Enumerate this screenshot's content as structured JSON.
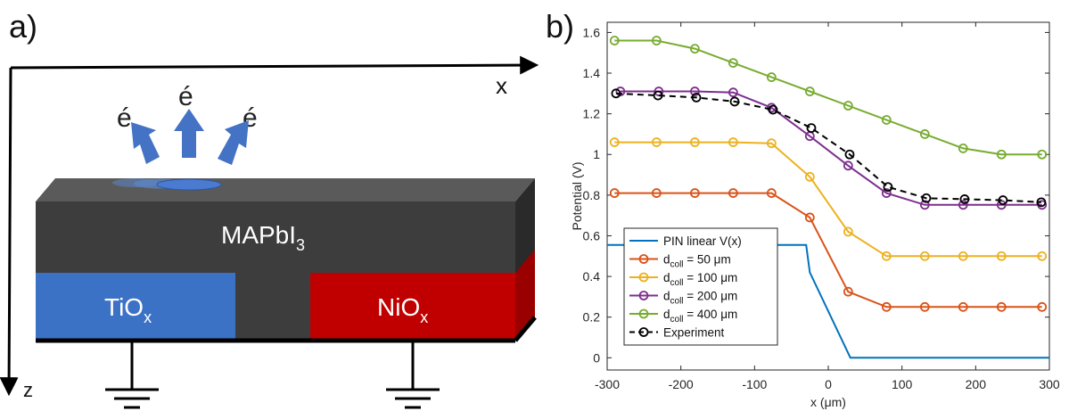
{
  "panel_a": {
    "label": "a)",
    "x_axis_label": "x",
    "z_axis_label": "z",
    "electron_symbols": [
      "é",
      "é",
      "é"
    ],
    "perovskite_label": "MAPbI",
    "perovskite_sub": "3",
    "left_contact_label": "TiO",
    "left_contact_sub": "x",
    "right_contact_label": "NiO",
    "right_contact_sub": "x",
    "colors": {
      "perovskite": "#3d3d3d",
      "tiox": "#3c72c6",
      "niox": "#c00000",
      "arrow": "#4472c4"
    }
  },
  "panel_b": {
    "label": "b)"
  },
  "chart_data": {
    "type": "line",
    "xlabel": "x (μm)",
    "ylabel": "Potential (V)",
    "xlim": [
      -300,
      300
    ],
    "ylim": [
      -0.06,
      1.65
    ],
    "xticks": [
      -300,
      -200,
      -100,
      0,
      100,
      200,
      300
    ],
    "xtick_labels": [
      "-300",
      "-200",
      "-100",
      "0",
      "100",
      "200",
      "300"
    ],
    "yticks": [
      0,
      0.2,
      0.4,
      0.6,
      0.8,
      1.0,
      1.2,
      1.4,
      1.6
    ],
    "ytick_labels": [
      "0",
      "0.2",
      "0.4",
      "0.6",
      "0.8",
      "1",
      "1.2",
      "1.4",
      "1.6"
    ],
    "legend_position": "bottom-left",
    "series": [
      {
        "name": "PIN linear V(x)",
        "name_main": "PIN linear V(x)",
        "name_sub": "",
        "name_rest": "",
        "color": "#0072bd",
        "marker": "none",
        "dash": false,
        "x": [
          -300,
          -30,
          -25,
          30,
          300
        ],
        "y": [
          0.555,
          0.555,
          0.42,
          0.0,
          0.0
        ]
      },
      {
        "name": "d_coll = 50 μm",
        "name_main": "d",
        "name_sub": "coll",
        "name_rest": " = 50 μm",
        "color": "#d95319",
        "marker": "circle",
        "dash": false,
        "x": [
          -290,
          -233,
          -181,
          -129,
          -77,
          -25,
          27,
          79,
          131,
          183,
          235,
          290
        ],
        "y": [
          0.81,
          0.81,
          0.81,
          0.81,
          0.81,
          0.69,
          0.325,
          0.25,
          0.25,
          0.25,
          0.25,
          0.25
        ]
      },
      {
        "name": "d_coll = 100 μm",
        "name_main": "d",
        "name_sub": "coll",
        "name_rest": " = 100 μm",
        "color": "#edb120",
        "marker": "circle",
        "dash": false,
        "x": [
          -290,
          -233,
          -181,
          -129,
          -77,
          -25,
          27,
          79,
          131,
          183,
          235,
          290
        ],
        "y": [
          1.06,
          1.06,
          1.06,
          1.06,
          1.055,
          0.89,
          0.62,
          0.5,
          0.5,
          0.5,
          0.5,
          0.5
        ]
      },
      {
        "name": "d_coll = 200 μm",
        "name_main": "d",
        "name_sub": "coll",
        "name_rest": " = 200 μm",
        "color": "#7e2f8e",
        "marker": "circle",
        "dash": false,
        "x": [
          -282,
          -230,
          -181,
          -129,
          -77,
          -25,
          27,
          79,
          131,
          183,
          235,
          290
        ],
        "y": [
          1.31,
          1.31,
          1.31,
          1.305,
          1.23,
          1.09,
          0.945,
          0.81,
          0.752,
          0.752,
          0.752,
          0.752
        ]
      },
      {
        "name": "d_coll = 400 μm",
        "name_main": "d",
        "name_sub": "coll",
        "name_rest": " = 400 μm",
        "color": "#77ac30",
        "marker": "circle",
        "dash": false,
        "x": [
          -290,
          -233,
          -181,
          -129,
          -77,
          -25,
          27,
          79,
          131,
          183,
          235,
          290
        ],
        "y": [
          1.56,
          1.56,
          1.52,
          1.45,
          1.38,
          1.31,
          1.24,
          1.17,
          1.1,
          1.03,
          1.0,
          1.0
        ]
      },
      {
        "name": "Experiment",
        "name_main": "Experiment",
        "name_sub": "",
        "name_rest": "",
        "color": "#000000",
        "marker": "circle",
        "dash": true,
        "x": [
          -288,
          -231,
          -179,
          -127,
          -75,
          -23,
          29,
          81,
          133,
          185,
          237,
          289
        ],
        "y": [
          1.3,
          1.29,
          1.28,
          1.26,
          1.22,
          1.13,
          1.0,
          0.84,
          0.785,
          0.78,
          0.775,
          0.765
        ]
      }
    ]
  }
}
